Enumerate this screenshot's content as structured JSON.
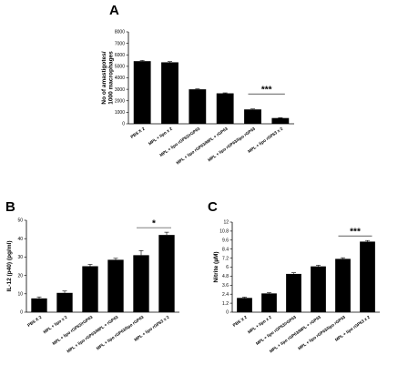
{
  "chart_data": [
    {
      "type": "bar",
      "panel": "A",
      "ylabel": "No of amastigotes/\n1000 macrophages",
      "ylim": [
        0,
        8000
      ],
      "yticks": [
        "0",
        "1000",
        "2000",
        "3000",
        "4000",
        "5000",
        "6000",
        "7000",
        "8000"
      ],
      "categories": [
        "PBS X 2",
        "MPL + lipo x 2",
        "MPL + lipo rGP63/rGP63",
        "MPL + lipo rGP63/MPL + rGP63",
        "MPL + lipo rGP63/lipo rGP63",
        "MPL + lipo rGP63 x 2"
      ],
      "values": [
        5450,
        5350,
        3000,
        2650,
        1250,
        500
      ],
      "errors": [
        60,
        60,
        40,
        40,
        40,
        30
      ],
      "significance": {
        "label": "***",
        "from": 4,
        "to": 5
      },
      "color": "#000000"
    },
    {
      "type": "bar",
      "panel": "B",
      "ylabel": "IL-12 (p40) (pg/ml)",
      "ylim": [
        0,
        50
      ],
      "yticks": [
        "0",
        "10",
        "20",
        "30",
        "40",
        "50"
      ],
      "categories": [
        "PBS X 2",
        "MPL + lipo x 2",
        "MPL + lipo rGP63/rGP63",
        "MPL + lipo rGP63/MPL + rGP63",
        "MPL + lipo rGP63/lipo rGP63",
        "MPL + lipo rGP63 x 2"
      ],
      "values": [
        7.5,
        10.5,
        25,
        28.5,
        31,
        42
      ],
      "errors": [
        0.8,
        1,
        1,
        0.8,
        2.5,
        1.5
      ],
      "significance": {
        "label": "*",
        "from": 4,
        "to": 5
      },
      "color": "#000000"
    },
    {
      "type": "bar",
      "panel": "C",
      "ylabel": "Nitrite (µM)",
      "ylim": [
        0,
        12
      ],
      "yticks": [
        "0",
        "1.2",
        "2.4",
        "3.6",
        "4.8",
        "6",
        "7.2",
        "8.4",
        "9.6",
        "10.8",
        "12"
      ],
      "categories": [
        "PBS X 2",
        "MPL + lipo x 2",
        "MPL + lipo rGP63/rGP63",
        "MPL + lipo rGP63/MPL + rGP63",
        "MPL + lipo rGP63/lipo rGP63",
        "MPL + lipo rGP63 x 2"
      ],
      "values": [
        1.9,
        2.5,
        5.1,
        6.1,
        7.1,
        9.4
      ],
      "errors": [
        0.1,
        0.1,
        0.15,
        0.15,
        0.15,
        0.15
      ],
      "significance": {
        "label": "***",
        "from": 4,
        "to": 5
      },
      "color": "#000000"
    }
  ]
}
